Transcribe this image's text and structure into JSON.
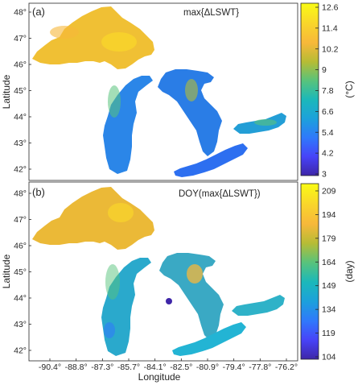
{
  "panels": [
    {
      "label": "(a)",
      "title": "max{ΔLSWT}",
      "y_ticks": [
        "48°",
        "47°",
        "46°",
        "45°",
        "44°",
        "43°",
        "42°"
      ],
      "colorbar_ticks": [
        "12.6",
        "11.4",
        "10.2",
        "9",
        "7.8",
        "6.6",
        "5.4",
        "4.2",
        "3"
      ],
      "colorbar_unit": "(°C)",
      "colorbar_range": [
        3,
        12.6
      ]
    },
    {
      "label": "(b)",
      "title": "DOY(max{ΔLSWT})",
      "y_ticks": [
        "48°",
        "47°",
        "46°",
        "45°",
        "44°",
        "43°",
        "42°"
      ],
      "colorbar_ticks": [
        "209",
        "194",
        "179",
        "164",
        "149",
        "134",
        "119",
        "104"
      ],
      "colorbar_unit": "(day)",
      "colorbar_range": [
        104,
        209
      ]
    }
  ],
  "x_ticks": [
    "-90.4°",
    "-88.8°",
    "-87.3°",
    "-85.7°",
    "-84.1°",
    "-82.5°",
    "-80.9°",
    "-79.4°",
    "-77.8°",
    "-76.2°"
  ],
  "xlabel": "Longitude",
  "ylabel": "Latitude",
  "colormap": [
    "#3e26a8",
    "#4743f8",
    "#2f79fb",
    "#1ca1db",
    "#1bb8ba",
    "#58c37c",
    "#b6bc35",
    "#f7b83a",
    "#f9d52b",
    "#f9fb15"
  ],
  "lakes": {
    "superior": {
      "a_fill": "#f0c034",
      "b_fill": "#ebb937"
    },
    "michigan": {
      "a_fill": "#2b86e8",
      "b_fill": "#2aa9cc"
    },
    "huron": {
      "a_fill": "#2a7de6",
      "b_fill": "#3aa9c4"
    },
    "erie": {
      "a_fill": "#2d6ff0",
      "b_fill": "#23b4d4"
    },
    "ontario": {
      "a_fill": "#239ed6",
      "b_fill": "#2fb2c8"
    }
  }
}
